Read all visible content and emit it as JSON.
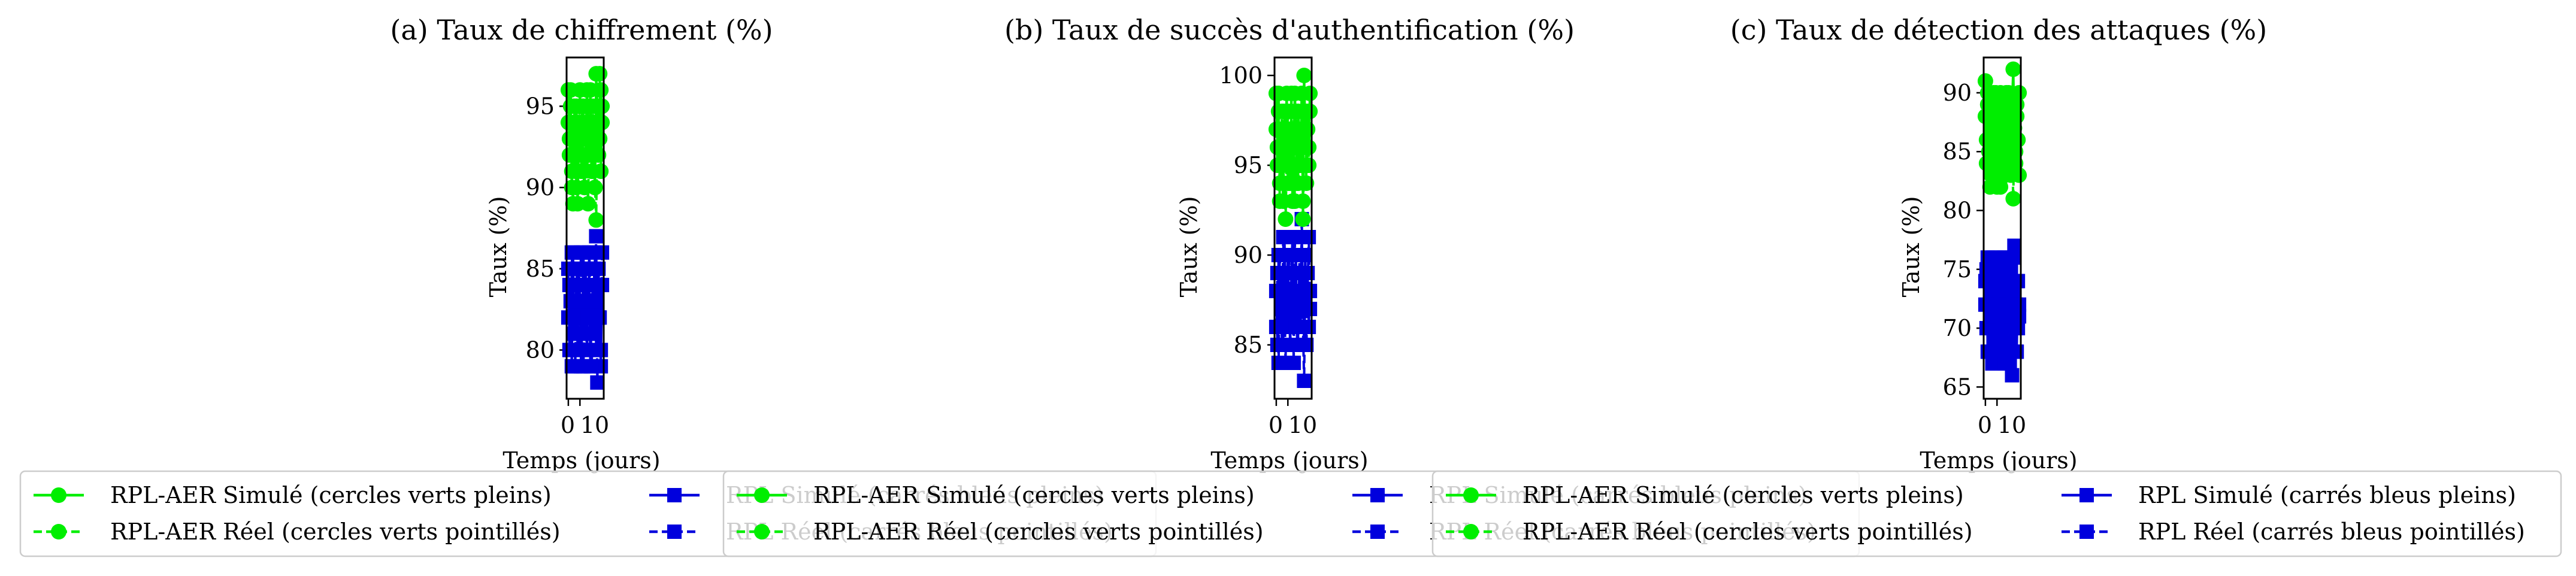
{
  "figure": {
    "colors": {
      "rpl_aer": "#00ee00",
      "rpl": "#0000dd"
    },
    "legend_entries": [
      {
        "label": "RPL-AER Simulé (cercles verts pleins)",
        "color": "#00ee00",
        "marker": "circle",
        "linestyle": "solid"
      },
      {
        "label": "RPL-AER Réel (cercles verts pointillés)",
        "color": "#00ee00",
        "marker": "circle",
        "linestyle": "dashed"
      },
      {
        "label": "RPL Simulé (carrés bleus pleins)",
        "color": "#0000dd",
        "marker": "square",
        "linestyle": "solid"
      },
      {
        "label": "RPL Réel (carrés bleus pointillés)",
        "color": "#0000dd",
        "marker": "square",
        "linestyle": "dashed"
      }
    ]
  },
  "chart_data": [
    {
      "type": "line",
      "title": "(a) Taux de chiffrement (%)",
      "xlabel": "Temps (jours)",
      "ylabel": "Taux (%)",
      "x": [
        0,
        1,
        2,
        3,
        4,
        5,
        6,
        7,
        8,
        9,
        10,
        11,
        12,
        13,
        14,
        15,
        16,
        17,
        18,
        19,
        20,
        21,
        22,
        23,
        24,
        25,
        26,
        27,
        28,
        29
      ],
      "xticks": [
        "0",
        "10"
      ],
      "yticks": [
        80,
        85,
        90,
        95
      ],
      "ylim": [
        77,
        98
      ],
      "legend_placement": "below",
      "series": [
        {
          "name": "RPL-AER Simulé (cercles verts pleins)",
          "color": "#00ee00",
          "marker": "circle",
          "linestyle": "solid",
          "values": [
            96,
            93,
            95,
            90,
            94,
            92,
            91,
            95,
            89,
            93,
            94,
            92,
            95,
            91,
            90,
            93,
            96,
            94,
            92,
            95,
            93,
            91,
            94,
            90,
            97,
            95,
            92,
            93,
            96,
            94
          ]
        },
        {
          "name": "RPL-AER Réel (cercles verts pointillés)",
          "color": "#00ee00",
          "marker": "circle",
          "linestyle": "dashed",
          "values": [
            94,
            92,
            96,
            91,
            89,
            95,
            93,
            90,
            94,
            92,
            96,
            91,
            93,
            95,
            90,
            92,
            94,
            89,
            93,
            96,
            91,
            95,
            92,
            90,
            88,
            94,
            93,
            97,
            91,
            95
          ]
        },
        {
          "name": "RPL Simulé (carrés bleus pleins)",
          "color": "#0000dd",
          "marker": "square",
          "linestyle": "solid",
          "values": [
            85,
            80,
            83,
            79,
            86,
            82,
            81,
            84,
            80,
            85,
            83,
            79,
            82,
            86,
            81,
            84,
            80,
            83,
            85,
            79,
            82,
            84,
            81,
            86,
            80,
            83,
            85,
            82,
            79,
            84
          ]
        },
        {
          "name": "RPL Réel (carrés bleus pointillés)",
          "color": "#0000dd",
          "marker": "square",
          "linestyle": "dashed",
          "values": [
            82,
            84,
            80,
            86,
            81,
            83,
            79,
            85,
            82,
            80,
            84,
            86,
            81,
            79,
            83,
            85,
            80,
            82,
            86,
            84,
            79,
            81,
            85,
            83,
            87,
            78,
            82,
            84,
            80,
            86
          ]
        }
      ]
    },
    {
      "type": "line",
      "title": "(b) Taux de succès d'authentification (%)",
      "xlabel": "Temps (jours)",
      "ylabel": "Taux (%)",
      "x": [
        0,
        1,
        2,
        3,
        4,
        5,
        6,
        7,
        8,
        9,
        10,
        11,
        12,
        13,
        14,
        15,
        16,
        17,
        18,
        19,
        20,
        21,
        22,
        23,
        24,
        25,
        26,
        27,
        28,
        29
      ],
      "xticks": [
        "0",
        "10"
      ],
      "yticks": [
        85,
        90,
        95,
        100
      ],
      "ylim": [
        82,
        101
      ],
      "legend_placement": "below",
      "series": [
        {
          "name": "RPL-AER Simulé (cercles verts pleins)",
          "color": "#00ee00",
          "marker": "circle",
          "linestyle": "solid",
          "values": [
            99,
            96,
            98,
            94,
            97,
            95,
            93,
            98,
            96,
            99,
            94,
            97,
            95,
            98,
            93,
            96,
            99,
            97,
            94,
            98,
            95,
            96,
            99,
            93,
            100,
            97,
            95,
            98,
            96,
            99
          ]
        },
        {
          "name": "RPL-AER Réel (cercles verts pointillés)",
          "color": "#00ee00",
          "marker": "circle",
          "linestyle": "dashed",
          "values": [
            97,
            95,
            99,
            93,
            96,
            98,
            94,
            97,
            92,
            95,
            98,
            96,
            94,
            99,
            95,
            97,
            93,
            96,
            98,
            94,
            97,
            95,
            99,
            92,
            96,
            98,
            94,
            97,
            95,
            98
          ]
        },
        {
          "name": "RPL Simulé (carrés bleus pleins)",
          "color": "#0000dd",
          "marker": "square",
          "linestyle": "solid",
          "values": [
            88,
            85,
            90,
            86,
            89,
            87,
            85,
            91,
            88,
            86,
            90,
            87,
            85,
            89,
            91,
            86,
            88,
            90,
            85,
            87,
            89,
            86,
            91,
            88,
            85,
            90,
            87,
            89,
            86,
            88
          ]
        },
        {
          "name": "RPL Réel (carrés bleus pointillés)",
          "color": "#0000dd",
          "marker": "square",
          "linestyle": "dashed",
          "values": [
            86,
            89,
            84,
            90,
            87,
            85,
            91,
            88,
            84,
            89,
            86,
            90,
            85,
            87,
            89,
            84,
            91,
            86,
            88,
            85,
            90,
            87,
            92,
            86,
            83,
            89,
            85,
            88,
            91,
            87
          ]
        }
      ]
    },
    {
      "type": "line",
      "title": "(c) Taux de détection des attaques (%)",
      "xlabel": "Temps (jours)",
      "ylabel": "Taux (%)",
      "x": [
        0,
        1,
        2,
        3,
        4,
        5,
        6,
        7,
        8,
        9,
        10,
        11,
        12,
        13,
        14,
        15,
        16,
        17,
        18,
        19,
        20,
        21,
        22,
        23,
        24,
        25,
        26,
        27,
        28,
        29
      ],
      "xticks": [
        "0",
        "10"
      ],
      "yticks": [
        65,
        70,
        75,
        80,
        85,
        90
      ],
      "ylim": [
        64,
        93
      ],
      "legend_placement": "below",
      "series": [
        {
          "name": "RPL-AER Simulé (cercles verts pleins)",
          "color": "#00ee00",
          "marker": "circle",
          "linestyle": "solid",
          "values": [
            91,
            86,
            89,
            84,
            88,
            83,
            87,
            90,
            85,
            89,
            82,
            88,
            86,
            90,
            84,
            87,
            89,
            83,
            88,
            85,
            90,
            86,
            84,
            89,
            92,
            87,
            85,
            88,
            86,
            90
          ]
        },
        {
          "name": "RPL-AER Réel (cercles verts pointillés)",
          "color": "#00ee00",
          "marker": "circle",
          "linestyle": "dashed",
          "values": [
            88,
            84,
            90,
            85,
            82,
            87,
            89,
            83,
            86,
            90,
            84,
            88,
            85,
            82,
            89,
            86,
            83,
            87,
            90,
            84,
            86,
            88,
            83,
            85,
            81,
            87,
            84,
            89,
            86,
            83
          ]
        },
        {
          "name": "RPL Simulé (carrés bleus pleins)",
          "color": "#0000dd",
          "marker": "square",
          "linestyle": "solid",
          "values": [
            74,
            70,
            76,
            68,
            73,
            71,
            75,
            69,
            72,
            76,
            67,
            74,
            70,
            73,
            75,
            68,
            72,
            76,
            69,
            74,
            71,
            67,
            75,
            73,
            70,
            76,
            72,
            68,
            74,
            71
          ]
        },
        {
          "name": "RPL Réel (carrés bleus pointillés)",
          "color": "#0000dd",
          "marker": "square",
          "linestyle": "dashed",
          "values": [
            72,
            75,
            68,
            74,
            70,
            73,
            67,
            76,
            71,
            69,
            74,
            72,
            75,
            68,
            73,
            70,
            76,
            67,
            72,
            74,
            69,
            75,
            71,
            66,
            73,
            77,
            68,
            74,
            70,
            72
          ]
        }
      ]
    }
  ]
}
